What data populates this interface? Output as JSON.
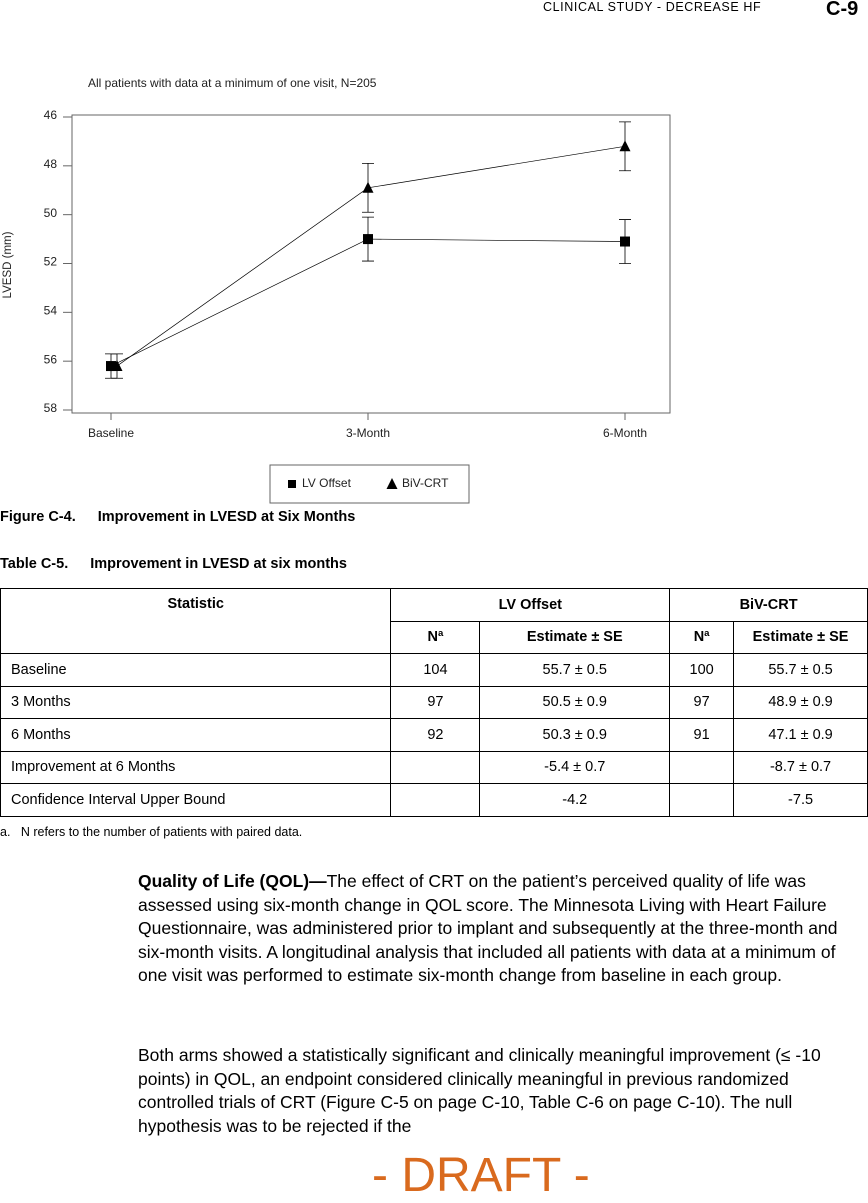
{
  "header": {
    "section": "CLINICAL STUDY - DECREASE HF",
    "page": "C-9"
  },
  "chart_data": {
    "type": "line",
    "subtitle": "All patients with data at a minimum of one visit, N=205",
    "y_label": "LVESD (mm)",
    "categories": [
      "Baseline",
      "3-Month",
      "6-Month"
    ],
    "series": [
      {
        "name": "LV Offset",
        "marker": "square",
        "color": "#000000",
        "values": [
          56.2,
          51.0,
          51.1
        ],
        "errors": [
          0.5,
          0.9,
          0.9
        ]
      },
      {
        "name": "BiV-CRT",
        "marker": "triangle",
        "color": "#000000",
        "values": [
          56.2,
          48.9,
          47.2
        ],
        "errors": [
          0.5,
          1.0,
          1.0
        ]
      }
    ],
    "ylim": [
      58,
      46
    ],
    "yticks": [
      46,
      48,
      50,
      52,
      54,
      56,
      58
    ],
    "legend": "bottom"
  },
  "figure_caption": {
    "label": "Figure C-4.",
    "title": "Improvement in LVESD at Six Months"
  },
  "table": {
    "label": "Table C-5.",
    "title": "Improvement in LVESD at six months",
    "header": [
      "Statistic",
      "LV Offset",
      "BiV-CRT"
    ],
    "subheader": [
      "Nª",
      "Estimate ± SE",
      "Nª",
      "Estimate ± SE"
    ],
    "rows": [
      [
        "Baseline",
        "104",
        "55.7 ± 0.5",
        "100",
        "55.7 ± 0.5"
      ],
      [
        "3 Months",
        "97",
        "50.5 ± 0.9",
        "97",
        "48.9 ± 0.9"
      ],
      [
        "6 Months",
        "92",
        "50.3 ± 0.9",
        "91",
        "47.1 ± 0.9"
      ],
      [
        "Improvement at 6 Months",
        null,
        "-5.4 ± 0.7",
        null,
        "-8.7 ± 0.7"
      ],
      [
        "Confidence Interval Upper Bound",
        null,
        "-4.2",
        null,
        "-7.5"
      ]
    ],
    "footnote": "a.   N refers to the number of patients with paired data."
  },
  "paragraphs": [
    {
      "lead": "Quality of Life (QOL)—",
      "text": "The effect of CRT on the patient’s perceived quality of life was assessed using six-month change in QOL score. The Minnesota Living with Heart Failure Questionnaire, was administered prior to implant and subsequently at the three-month and six-month visits. A longitudinal analysis that included all patients with data at a minimum of one visit was performed to estimate six-month change from baseline in each group."
    },
    {
      "text": "Both arms showed a statistically significant and clinically meaningful improvement (≤ -10 points) in QOL, an endpoint considered clinically meaningful in previous randomized controlled trials of CRT (Figure C-5 on page C-10, Table C-6 on page C-10). The null hypothesis was to be rejected if the"
    }
  ],
  "watermark": "- DRAFT -"
}
